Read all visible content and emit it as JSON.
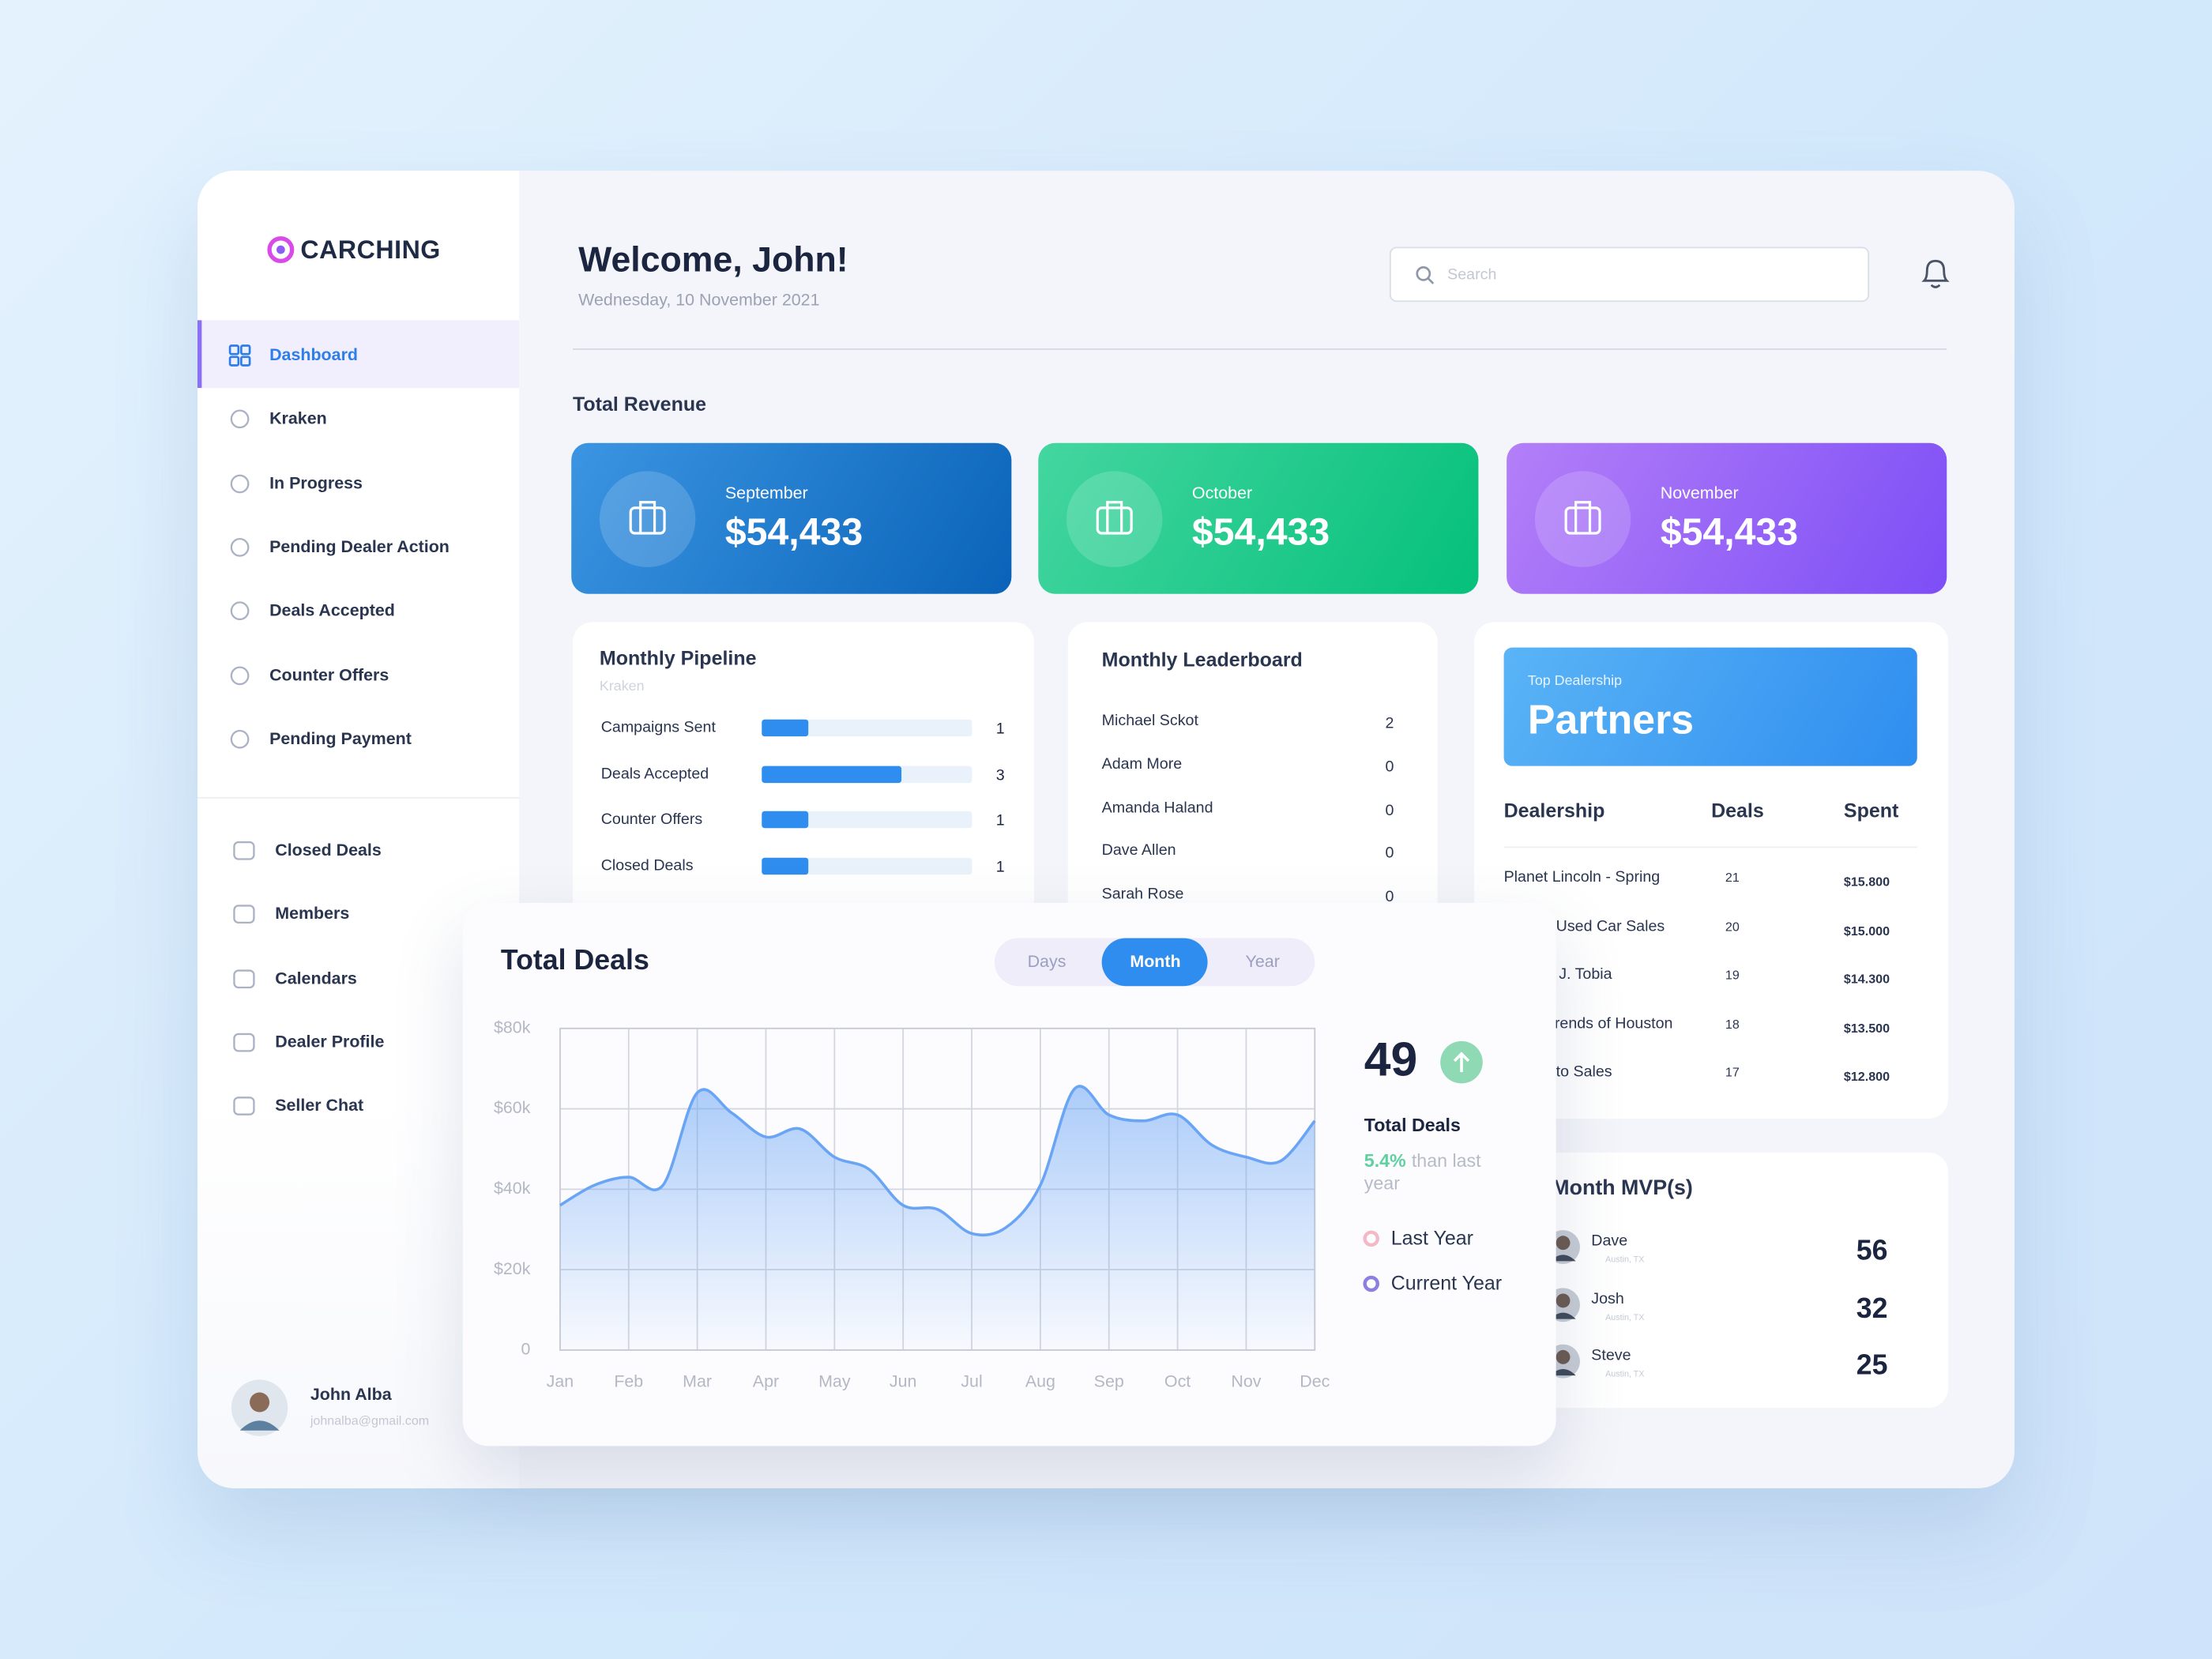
{
  "brand": "CARCHING",
  "nav_main": [
    "Dashboard",
    "Kraken",
    "In Progress",
    "Pending Dealer Action",
    "Deals Accepted",
    "Counter Offers",
    "Pending Payment"
  ],
  "nav_secondary": [
    "Closed Deals",
    "Members",
    "Calendars",
    "Dealer Profile",
    "Seller Chat"
  ],
  "user": {
    "name": "John Alba",
    "email": "johnalba@gmail.com"
  },
  "header": {
    "title": "Welcome, John!",
    "date": "Wednesday, 10 November 2021",
    "search_placeholder": "Search"
  },
  "revenue": {
    "title": "Total Revenue",
    "cards": [
      {
        "month": "September",
        "amount": "$54,433"
      },
      {
        "month": "October",
        "amount": "$54,433"
      },
      {
        "month": "November",
        "amount": "$54,433"
      }
    ]
  },
  "pipeline": {
    "title": "Monthly Pipeline",
    "subtitle": "Kraken",
    "rows": [
      {
        "label": "Campaigns Sent",
        "value": 1
      },
      {
        "label": "Deals Accepted",
        "value": 3
      },
      {
        "label": "Counter Offers",
        "value": 1
      },
      {
        "label": "Closed Deals",
        "value": 1
      }
    ]
  },
  "leaderboard": {
    "title": "Monthly Leaderboard",
    "rows": [
      {
        "name": "Michael Sckot",
        "value": 2
      },
      {
        "name": "Adam More",
        "value": 0
      },
      {
        "name": "Amanda Haland",
        "value": 0
      },
      {
        "name": "Dave Allen",
        "value": 0
      },
      {
        "name": "Sarah Rose",
        "value": 0
      }
    ]
  },
  "partners": {
    "eyebrow": "Top Dealership",
    "title": "Partners",
    "columns": [
      "Dealership",
      "Deals",
      "Spent"
    ],
    "rows": [
      [
        "Planet Lincoln - Spring",
        21,
        "$15.800"
      ],
      [
        "Used Car Sales",
        20,
        "$15.000"
      ],
      [
        "J. Tobia",
        19,
        "$14.300"
      ],
      [
        "rends of Houston",
        18,
        "$13.500"
      ],
      [
        "to Sales",
        17,
        "$12.800"
      ]
    ]
  },
  "mvp": {
    "title": "Month MVP(s)",
    "rows": [
      {
        "name": "Dave",
        "location": "Austin, TX",
        "value": 56
      },
      {
        "name": "Josh",
        "location": "Austin, TX",
        "value": 32
      },
      {
        "name": "Steve",
        "location": "Austin, TX",
        "value": 25
      }
    ]
  },
  "total_deals": {
    "title": "Total Deals",
    "tabs": [
      "Days",
      "Month",
      "Year"
    ],
    "active_tab": 1,
    "total": 49,
    "stat_label": "Total Deals",
    "change": "5.4%",
    "change_text": "than last year",
    "legend": [
      {
        "label": "Last Year",
        "color": "#f4b9c7"
      },
      {
        "label": "Current Year",
        "color": "#8c7fe0"
      }
    ]
  },
  "chart_data": {
    "type": "area",
    "categories": [
      "Jan",
      null,
      "Feb",
      null,
      "Mar",
      null,
      "Apr",
      null,
      "May",
      null,
      "Jun",
      null,
      "Jul",
      null,
      "Aug",
      null,
      "Sep",
      null,
      "Oct",
      null,
      "Nov",
      null,
      "Dec"
    ],
    "series": [
      {
        "color": "#6aa5f5",
        "values": [
          36000,
          41000,
          43000,
          41000,
          64000,
          59000,
          53000,
          55000,
          48000,
          45000,
          36000,
          35000,
          29000,
          30500,
          41000,
          65000,
          58500,
          57000,
          58500,
          51000,
          48000,
          47000,
          57000
        ]
      }
    ],
    "ylim": [
      0,
      80000
    ],
    "yticks": [
      0,
      {
        "value": 20000,
        "label": "$20k"
      },
      {
        "value": 40000,
        "label": "$40k"
      },
      {
        "value": 60000,
        "label": "$60k"
      },
      {
        "value": 80000,
        "label": "$80k"
      }
    ],
    "grid": true
  }
}
